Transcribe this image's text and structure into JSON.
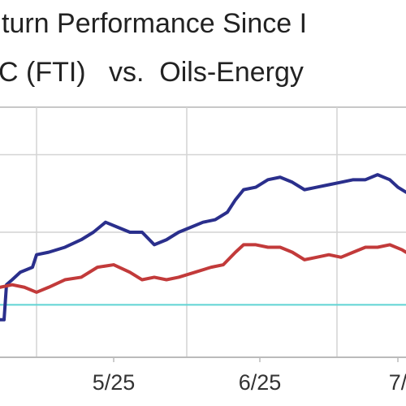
{
  "chart_data": {
    "type": "line",
    "title": "turn Performance Since I",
    "subtitle": "C (FTI)   vs.  Oils-Energy",
    "xlim": [
      0,
      500
    ],
    "ylim": [
      0,
      100
    ],
    "xticks": [
      {
        "value": 140,
        "label": "5/25"
      },
      {
        "value": 320,
        "label": "6/25"
      },
      {
        "value": 490,
        "label": "7/"
      }
    ],
    "xgrid": [
      45,
      230,
      415
    ],
    "ygrid": [
      81,
      50
    ],
    "reference_line": {
      "value": 21,
      "color": "#5fd3d3"
    },
    "series": [
      {
        "color": "#2a2f8c",
        "x": [
          0,
          5,
          8,
          15,
          25,
          40,
          45,
          60,
          80,
          100,
          115,
          130,
          145,
          160,
          175,
          190,
          205,
          220,
          235,
          250,
          265,
          280,
          290,
          300,
          315,
          330,
          345,
          360,
          375,
          390,
          405,
          420,
          435,
          450,
          465,
          480,
          490,
          500
        ],
        "values": [
          15,
          15,
          29,
          31,
          34,
          36,
          41,
          42,
          44,
          47,
          50,
          54,
          52,
          50,
          50,
          45,
          47,
          50,
          52,
          54,
          55,
          58,
          63,
          67,
          68,
          71,
          72,
          70,
          67,
          68,
          69,
          70,
          71,
          71,
          73,
          71,
          68,
          66
        ]
      },
      {
        "color": "#c23a3a",
        "x": [
          0,
          15,
          30,
          45,
          60,
          80,
          100,
          120,
          140,
          160,
          175,
          190,
          205,
          220,
          240,
          260,
          275,
          290,
          300,
          315,
          330,
          345,
          360,
          375,
          390,
          405,
          420,
          435,
          450,
          465,
          480,
          495,
          500
        ],
        "values": [
          28,
          29,
          28,
          26,
          28,
          31,
          32,
          36,
          37,
          34,
          31,
          32,
          31,
          32,
          34,
          36,
          37,
          42,
          45,
          45,
          44,
          44,
          42,
          39,
          40,
          41,
          40,
          42,
          44,
          44,
          45,
          43,
          42
        ]
      }
    ]
  }
}
